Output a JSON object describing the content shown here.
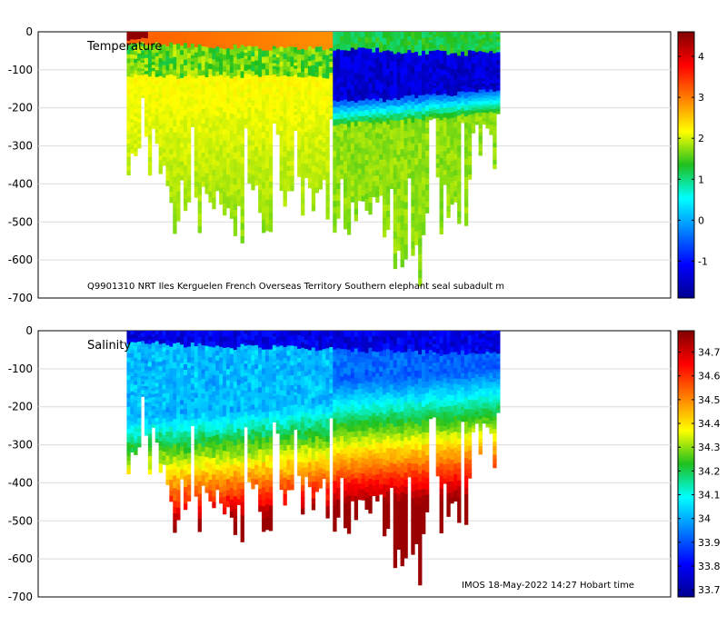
{
  "chart_data": [
    {
      "type": "heatmap",
      "title": "Temperature",
      "variable": "temperature",
      "caption": "Q9901310 NRT Iles Kerguelen French Overseas Territory Southern elephant seal subadult m",
      "ylim": [
        -700,
        0
      ],
      "yticks": [
        0,
        -100,
        -200,
        -300,
        -400,
        -500,
        -600,
        -700
      ],
      "colorbar": {
        "min": -1.9,
        "max": 4.6,
        "ticks": [
          4,
          3,
          2,
          1,
          0,
          -1
        ]
      },
      "profiles": {
        "count": 105,
        "start_fraction": 0.14,
        "end_fraction": 0.73,
        "depth_range": [
          -700,
          0
        ],
        "max_depth": -685
      },
      "grid": true
    },
    {
      "type": "heatmap",
      "title": "Salinity",
      "variable": "salinity",
      "caption": "IMOS 18-May-2022 14:27 Hobart time",
      "ylim": [
        -700,
        0
      ],
      "yticks": [
        0,
        -100,
        -200,
        -300,
        -400,
        -500,
        -600,
        -700
      ],
      "colorbar": {
        "min": 33.67,
        "max": 34.79,
        "ticks": [
          34.7,
          34.6,
          34.5,
          34.4,
          34.3,
          34.2,
          34.1,
          34,
          33.9,
          33.8,
          33.7
        ]
      },
      "profiles": {
        "count": 105,
        "start_fraction": 0.14,
        "end_fraction": 0.73,
        "depth_range": [
          -700,
          0
        ],
        "max_depth": -685
      },
      "grid": true
    }
  ]
}
